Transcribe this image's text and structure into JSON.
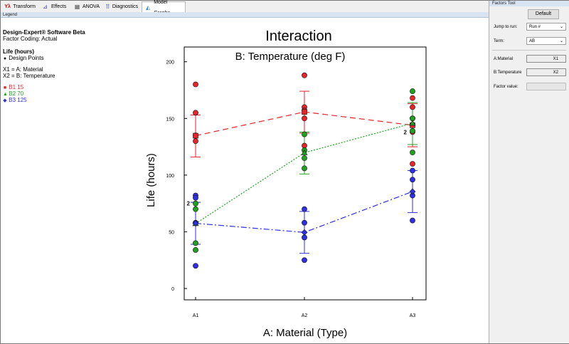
{
  "tabs": [
    {
      "label": "Transform",
      "icon": "lambda-icon",
      "glyph": "Yλ"
    },
    {
      "label": "Effects",
      "icon": "half-normal-plot-icon",
      "glyph": "⊿"
    },
    {
      "label": "ANOVA",
      "icon": "calculator-icon",
      "glyph": "▦"
    },
    {
      "label": "Diagnostics",
      "icon": "diagnostics-icon",
      "glyph": "⠿"
    },
    {
      "label": "Model Graphs",
      "icon": "model-graphs-icon",
      "glyph": "◭"
    }
  ],
  "legend_header": "Legend",
  "legend": {
    "software": "Design-Expert® Software Beta",
    "coding": "Factor Coding: Actual",
    "response": "Life (hours)",
    "design_points": "Design Points",
    "x1": "X1 = A: Material",
    "x2": "X2 = B: Temperature",
    "series": [
      {
        "label": "B1 15",
        "color": "#e8232a",
        "marker": "■"
      },
      {
        "label": "B2 70",
        "color": "#1fa31f",
        "marker": "▲"
      },
      {
        "label": "B3 125",
        "color": "#2f2fe6",
        "marker": "◆"
      }
    ]
  },
  "factors_tool": {
    "title": "Factors Tool",
    "default_button": "Default",
    "jump_label": "Jump to run:",
    "jump_value": "Run #",
    "term_label": "Term:",
    "term_value": "AB",
    "a_label": "A:Material",
    "a_value": "X1",
    "b_label": "B:Temperature",
    "b_value": "X2",
    "factor_value_label": "Factor value:"
  },
  "chart_data": {
    "type": "line",
    "title": "Interaction",
    "subtitle": "B: Temperature (deg F)",
    "xlabel": "A: Material (Type)",
    "ylabel": "Life (hours)",
    "categories": [
      "A1",
      "A2",
      "A3"
    ],
    "ylim": [
      -10,
      213
    ],
    "yticks": [
      0,
      50,
      100,
      150,
      200
    ],
    "series": [
      {
        "name": "B1 15",
        "color": "#e8232a",
        "dash": "8,5",
        "marker": "square",
        "means": [
          134.75,
          155.75,
          144.0
        ],
        "ci": [
          [
            116,
            153
          ],
          [
            137,
            174
          ],
          [
            125,
            163
          ]
        ]
      },
      {
        "name": "B2 70",
        "color": "#1fa31f",
        "dash": "2,2",
        "marker": "triangle",
        "means": [
          57.25,
          119.75,
          145.75
        ],
        "ci": [
          [
            39,
            76
          ],
          [
            101,
            138
          ],
          [
            127,
            164
          ]
        ]
      },
      {
        "name": "B3 125",
        "color": "#2f2fe6",
        "dash": "8,3,2,3",
        "marker": "diamond",
        "means": [
          57.5,
          49.5,
          85.5
        ],
        "ci": [
          [
            39,
            76
          ],
          [
            31,
            68
          ],
          [
            67,
            104
          ]
        ]
      }
    ],
    "points": [
      {
        "x": 0,
        "y": 180,
        "s": 0
      },
      {
        "x": 0,
        "y": 155,
        "s": 0
      },
      {
        "x": 0,
        "y": 130,
        "s": 0
      },
      {
        "x": 0,
        "y": 135,
        "s": 0
      },
      {
        "x": 0,
        "y": 75,
        "s": 1
      },
      {
        "x": 0,
        "y": 70,
        "s": 1
      },
      {
        "x": 0,
        "y": 40,
        "s": 1
      },
      {
        "x": 0,
        "y": 34,
        "s": 1
      },
      {
        "x": 0,
        "y": 82,
        "s": 2
      },
      {
        "x": 0,
        "y": 80,
        "s": 2
      },
      {
        "x": 0,
        "y": 58,
        "s": 2
      },
      {
        "x": 0,
        "y": 20,
        "s": 2
      },
      {
        "x": 1,
        "y": 188,
        "s": 0
      },
      {
        "x": 1,
        "y": 160,
        "s": 0
      },
      {
        "x": 1,
        "y": 157,
        "s": 0
      },
      {
        "x": 1,
        "y": 150,
        "s": 0
      },
      {
        "x": 1,
        "y": 126,
        "s": 0
      },
      {
        "x": 1,
        "y": 136,
        "s": 1
      },
      {
        "x": 1,
        "y": 122,
        "s": 1
      },
      {
        "x": 1,
        "y": 115,
        "s": 1
      },
      {
        "x": 1,
        "y": 106,
        "s": 1
      },
      {
        "x": 1,
        "y": 70,
        "s": 2
      },
      {
        "x": 1,
        "y": 58,
        "s": 2
      },
      {
        "x": 1,
        "y": 45,
        "s": 2
      },
      {
        "x": 1,
        "y": 25,
        "s": 2
      },
      {
        "x": 2,
        "y": 168,
        "s": 0
      },
      {
        "x": 2,
        "y": 160,
        "s": 0
      },
      {
        "x": 2,
        "y": 150,
        "s": 0
      },
      {
        "x": 2,
        "y": 138,
        "s": 0
      },
      {
        "x": 2,
        "y": 110,
        "s": 0
      },
      {
        "x": 2,
        "y": 174,
        "s": 1
      },
      {
        "x": 2,
        "y": 150,
        "s": 1
      },
      {
        "x": 2,
        "y": 139,
        "s": 1
      },
      {
        "x": 2,
        "y": 120,
        "s": 1
      },
      {
        "x": 2,
        "y": 104,
        "s": 2
      },
      {
        "x": 2,
        "y": 96,
        "s": 2
      },
      {
        "x": 2,
        "y": 82,
        "s": 2
      },
      {
        "x": 2,
        "y": 60,
        "s": 2
      }
    ],
    "annotations": [
      {
        "x": 0,
        "y": 75,
        "text": "2"
      },
      {
        "x": 2,
        "y": 138,
        "text": "2"
      }
    ]
  }
}
